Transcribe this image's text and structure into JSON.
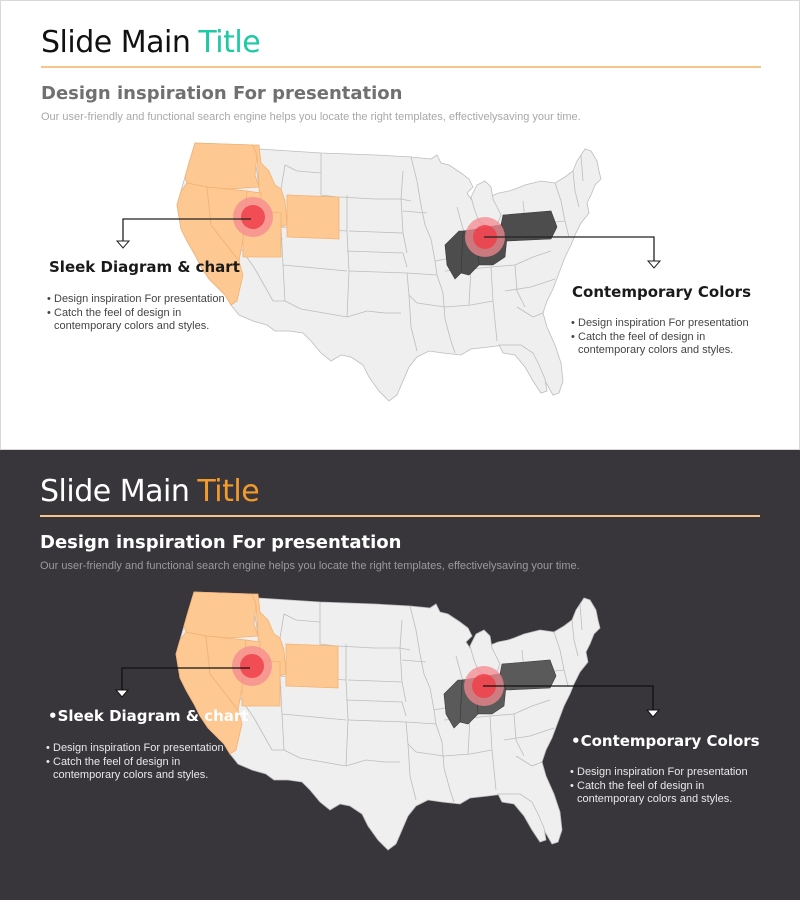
{
  "slides": [
    {
      "theme": "light",
      "title_main": "Slide Main",
      "title_accent": "Title",
      "accent_color": "#1ec9a3",
      "rule_color": "#f6c48c",
      "subtitle": "Design inspiration For presentation",
      "description": "Our user-friendly and functional search engine helps you locate the right templates, effectivelysaving your time.",
      "left_callout": {
        "heading": "Sleek Diagram & chart",
        "bullets": [
          "Design inspiration For presentation",
          "Catch the feel of design in",
          "contemporary colors and styles."
        ]
      },
      "right_callout": {
        "heading": "Contemporary Colors",
        "bullets": [
          "Design inspiration For presentation",
          "Catch the feel of design in",
          "contemporary colors and styles."
        ]
      }
    },
    {
      "theme": "dark",
      "title_main": "Slide Main",
      "title_accent": "Title",
      "accent_color": "#f39a2d",
      "rule_color": "#f6c48c",
      "subtitle": "Design inspiration For presentation",
      "description": "Our user-friendly and functional search engine helps you locate the right templates, effectivelysaving your time.",
      "left_callout": {
        "heading": "•Sleek Diagram & chart",
        "bullets": [
          "Design inspiration For presentation",
          "Catch the feel of design in",
          "contemporary colors and styles."
        ]
      },
      "right_callout": {
        "heading": "•Contemporary Colors",
        "bullets": [
          "Design inspiration For presentation",
          "Catch the feel of design in",
          "contemporary colors and styles."
        ]
      }
    }
  ],
  "map_colors": {
    "land": "#efefef",
    "border": "#bdbdbd",
    "west_highlight": "#fdc892",
    "east_highlight_light": "#4d4d4d",
    "east_highlight_dark": "#5a5a5a",
    "marker_outer": "#f4898f",
    "marker_inner": "#ee3f4a"
  }
}
